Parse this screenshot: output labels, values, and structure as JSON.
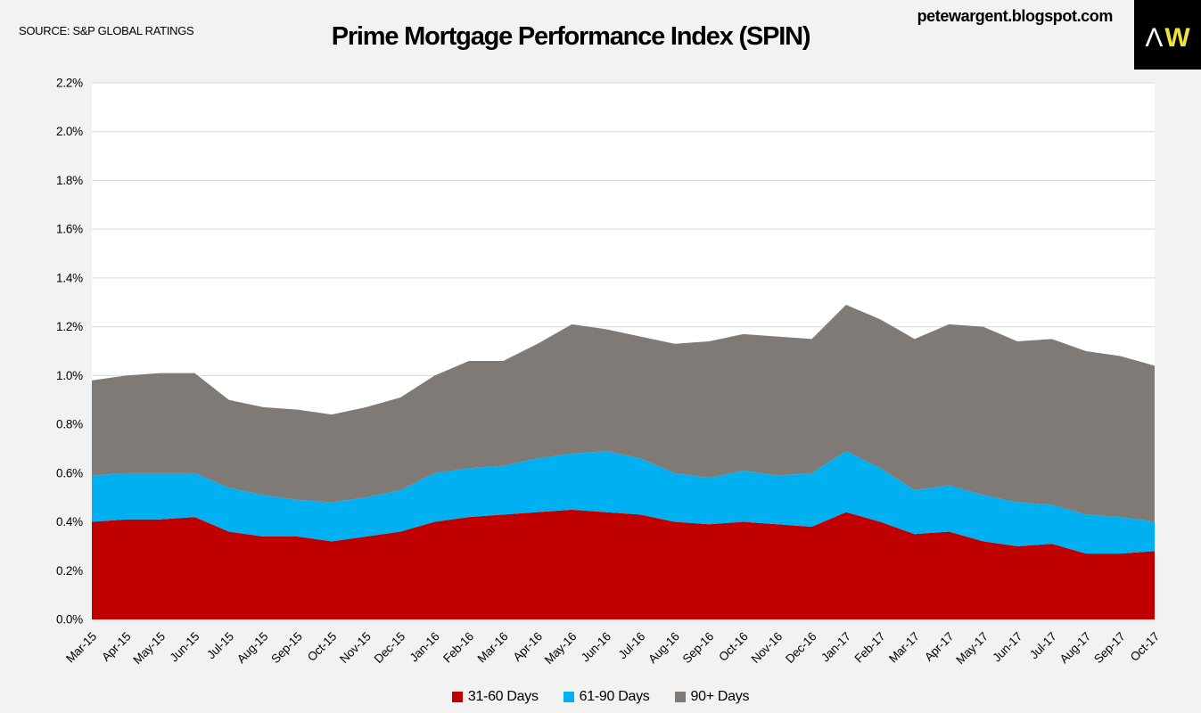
{
  "header": {
    "source": "SOURCE: S&P GLOBAL RATINGS",
    "title": "Prime Mortgage Performance Index (SPIN)",
    "watermark": "petewargent.blogspot.com",
    "logo": {
      "letter_a": "Λ",
      "letter_w": "W"
    }
  },
  "colors": {
    "series_31_60": "#C00000",
    "series_61_90": "#00B0F0",
    "series_90_plus": "#7F7A76",
    "background": "#F2F2F2",
    "plot_background": "#FFFFFF",
    "gridline": "#D9D9D9",
    "logo_background": "#000000",
    "logo_w_yellow": "#EDE33C",
    "text": "#000000"
  },
  "chart_data": {
    "type": "area",
    "stacked": true,
    "title": "Prime Mortgage Performance Index (SPIN)",
    "categories": [
      "Mar-15",
      "Apr-15",
      "May-15",
      "Jun-15",
      "Jul-15",
      "Aug-15",
      "Sep-15",
      "Oct-15",
      "Nov-15",
      "Dec-15",
      "Jan-16",
      "Feb-16",
      "Mar-16",
      "Apr-16",
      "May-16",
      "Jun-16",
      "Jul-16",
      "Aug-16",
      "Sep-16",
      "Oct-16",
      "Nov-16",
      "Dec-16",
      "Jan-17",
      "Feb-17",
      "Mar-17",
      "Apr-17",
      "May-17",
      "Jun-17",
      "Jul-17",
      "Aug-17",
      "Sep-17",
      "Oct-17"
    ],
    "series": [
      {
        "name": "31-60 Days",
        "color": "#C00000",
        "values": [
          0.4,
          0.41,
          0.41,
          0.42,
          0.36,
          0.34,
          0.34,
          0.32,
          0.34,
          0.36,
          0.4,
          0.42,
          0.43,
          0.44,
          0.45,
          0.44,
          0.43,
          0.4,
          0.39,
          0.4,
          0.39,
          0.38,
          0.44,
          0.4,
          0.35,
          0.36,
          0.32,
          0.3,
          0.31,
          0.27,
          0.27,
          0.28
        ]
      },
      {
        "name": "61-90 Days",
        "color": "#00B0F0",
        "values": [
          0.19,
          0.19,
          0.19,
          0.18,
          0.18,
          0.17,
          0.15,
          0.16,
          0.16,
          0.17,
          0.2,
          0.2,
          0.2,
          0.22,
          0.23,
          0.25,
          0.23,
          0.2,
          0.19,
          0.21,
          0.2,
          0.22,
          0.25,
          0.22,
          0.18,
          0.19,
          0.19,
          0.18,
          0.16,
          0.16,
          0.15,
          0.12
        ]
      },
      {
        "name": "90+ Days",
        "color": "#7F7A76",
        "values": [
          0.39,
          0.4,
          0.41,
          0.41,
          0.36,
          0.36,
          0.37,
          0.36,
          0.37,
          0.38,
          0.4,
          0.44,
          0.43,
          0.47,
          0.53,
          0.5,
          0.5,
          0.53,
          0.56,
          0.56,
          0.57,
          0.55,
          0.6,
          0.61,
          0.62,
          0.66,
          0.69,
          0.66,
          0.68,
          0.67,
          0.66,
          0.64
        ]
      }
    ],
    "totals": [
      0.98,
      1.0,
      1.01,
      1.01,
      0.9,
      0.87,
      0.86,
      0.84,
      0.87,
      0.91,
      1.0,
      1.06,
      1.06,
      1.13,
      1.21,
      1.19,
      1.16,
      1.13,
      1.14,
      1.17,
      1.16,
      1.15,
      1.29,
      1.23,
      1.15,
      1.21,
      1.2,
      1.14,
      1.15,
      1.1,
      1.08,
      1.04
    ],
    "y_axis": {
      "min": 0.0,
      "max": 2.2,
      "step": 0.2,
      "tick_labels": [
        "0.0%",
        "0.2%",
        "0.4%",
        "0.6%",
        "0.8%",
        "1.0%",
        "1.2%",
        "1.4%",
        "1.6%",
        "1.8%",
        "2.0%",
        "2.2%"
      ]
    },
    "x_axis": {
      "label_rotation_deg": 45
    },
    "legend_position": "bottom",
    "grid": "horizontal"
  }
}
